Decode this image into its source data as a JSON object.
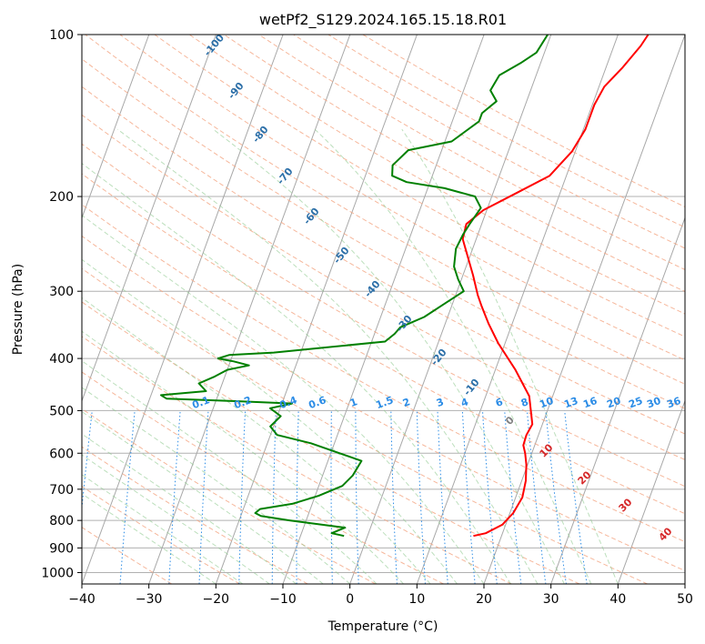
{
  "chart_data": {
    "type": "line",
    "title": "wetPf2_S129.2024.165.15.18.R01",
    "xlabel": "Temperature (°C)",
    "ylabel": "Pressure (hPa)",
    "xlim": [
      -40,
      50
    ],
    "ylim": [
      1050,
      100
    ],
    "y_scale": "log",
    "grid": true,
    "x_ticks": [
      "−40",
      "−30",
      "−20",
      "−10",
      "0",
      "10",
      "20",
      "30",
      "40",
      "50"
    ],
    "y_ticks": [
      "100",
      "200",
      "300",
      "400",
      "500",
      "600",
      "700",
      "800",
      "900",
      "1000"
    ],
    "series": [
      {
        "color": "#ff0000",
        "x": [
          15.8,
          17.5,
          19.5,
          20.5,
          21.0,
          20.6,
          19.8,
          19.0,
          18.3,
          18.2,
          18.5,
          16.5,
          13.0,
          9.0,
          6.5,
          4.5,
          3.3,
          1.5,
          -2.0,
          -2.3,
          -0.5,
          3.5,
          7.5,
          9.5,
          10.3,
          10.3,
          10.8,
          12.5,
          14.0,
          14.5
        ],
        "y": [
          855,
          845,
          815,
          775,
          725,
          675,
          630,
          600,
          580,
          555,
          530,
          470,
          420,
          375,
          345,
          320,
          305,
          280,
          240,
          225,
          212,
          197,
          183,
          165,
          150,
          135,
          125,
          115,
          105,
          100
        ]
      },
      {
        "color": "#008000",
        "x": [
          -3.5,
          -5.5,
          -3.8,
          -12.5,
          -17.0,
          -18.0,
          -17.5,
          -13.0,
          -9.5,
          -6.5,
          -5.5,
          -5.0,
          -13.5,
          -19.0,
          -20.5,
          -19.5,
          -21.5,
          -18.5,
          -27.5,
          -37.5,
          -38.5,
          -32.0,
          -33.5,
          -31.5,
          -30.0,
          -27.0,
          -29.5,
          -32.0,
          -30.5,
          -24.0,
          -8.0,
          -7.0,
          -6.5,
          -3.5,
          -1.0,
          1.0,
          -0.5,
          -1.8,
          -2.5,
          -2.2,
          -1.8,
          -1.0,
          -2.5,
          -7.5,
          -13.5,
          -16.0,
          -16.5,
          -15.0,
          -9.0,
          -6.0,
          -6.0,
          -4.5,
          -6.0,
          -5.5,
          -3.0,
          -1.2,
          -0.5
        ],
        "y": [
          855,
          845,
          825,
          800,
          785,
          775,
          762,
          745,
          720,
          690,
          660,
          620,
          575,
          555,
          535,
          512,
          495,
          485,
          480,
          475,
          468,
          460,
          445,
          432,
          420,
          412,
          405,
          400,
          394,
          390,
          372,
          360,
          350,
          335,
          315,
          300,
          285,
          270,
          250,
          235,
          225,
          210,
          200,
          193,
          188,
          183,
          175,
          164,
          158,
          145,
          140,
          133,
          127,
          119,
          113,
          108,
          100
        ]
      }
    ],
    "annotations": {
      "dry_adiabats": [
        "-100",
        "-90",
        "-80",
        "-70",
        "-60",
        "-50",
        "-40",
        "-30",
        "-20",
        "-10"
      ],
      "mixing_ratio": [
        "0.1",
        "0.2",
        "0.4",
        "0.6",
        "1",
        "1.5",
        "2",
        "3",
        "4",
        "6",
        "8",
        "10",
        "13",
        "16",
        "20",
        "25",
        "30",
        "36"
      ],
      "moist_adiabats": [
        "0",
        "10",
        "20",
        "30",
        "40"
      ]
    }
  }
}
